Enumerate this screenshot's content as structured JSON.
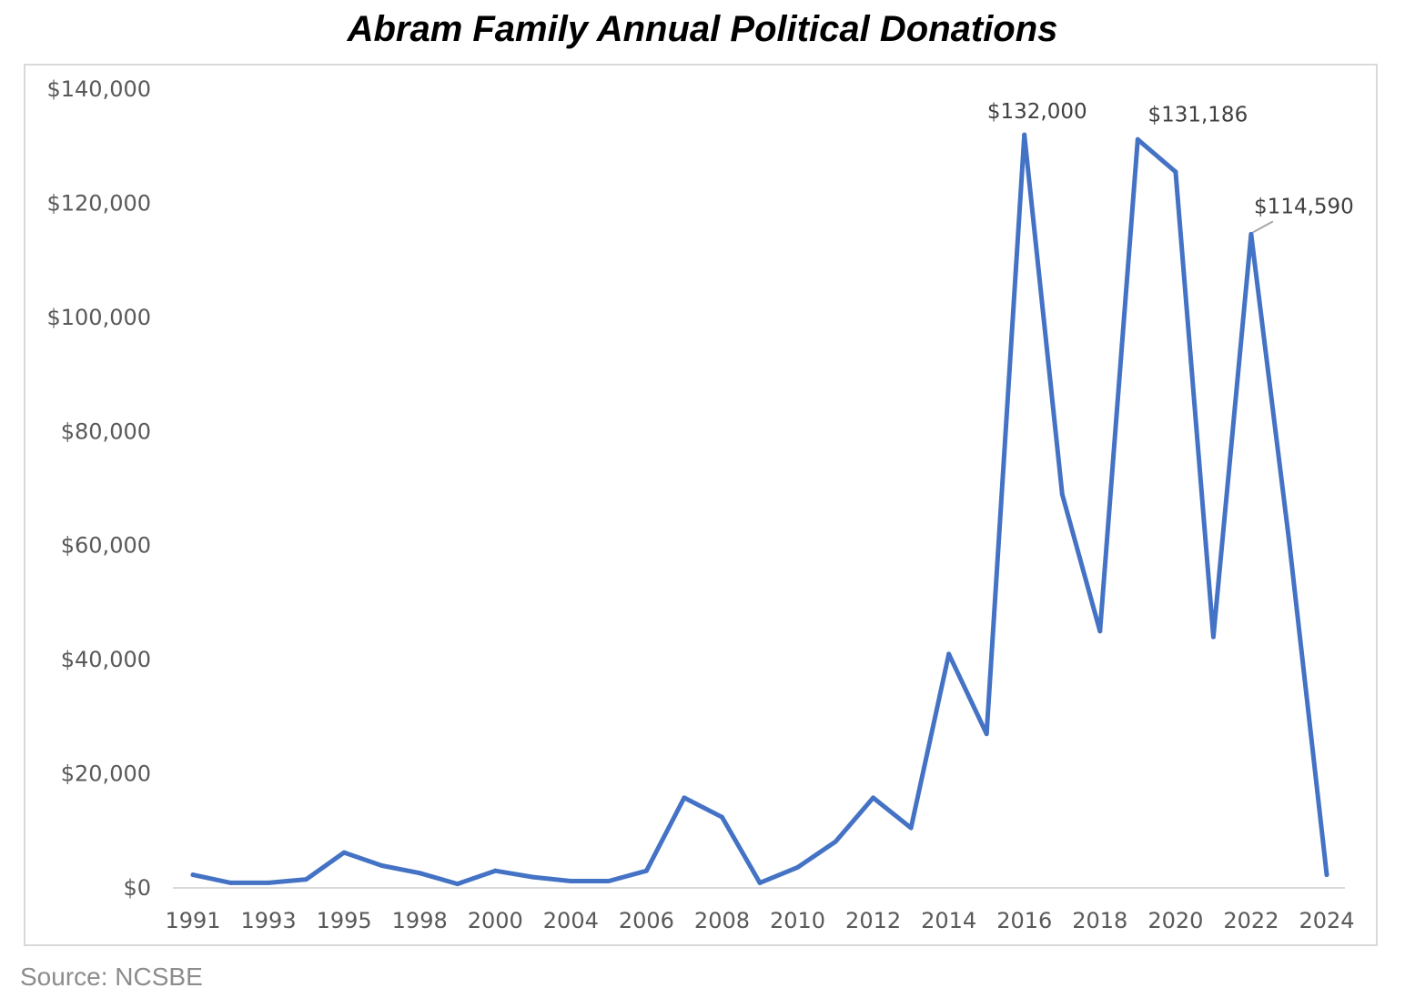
{
  "chart_data": {
    "type": "line",
    "title": "Abram Family Annual Political Donations",
    "source": "Source: NCSBE",
    "x": [
      1991,
      1992,
      1993,
      1994,
      1995,
      1996,
      1998,
      1999,
      2000,
      2003,
      2004,
      2005,
      2006,
      2007,
      2008,
      2009,
      2010,
      2011,
      2012,
      2013,
      2014,
      2015,
      2016,
      2017,
      2018,
      2019,
      2020,
      2021,
      2022,
      2023,
      2024
    ],
    "x_tick_labels": [
      "1991",
      "1993",
      "1995",
      "1998",
      "2000",
      "2004",
      "2006",
      "2008",
      "2010",
      "2012",
      "2014",
      "2016",
      "2018",
      "2020",
      "2022",
      "2024"
    ],
    "series": [
      {
        "values": [
          2300,
          900,
          900,
          1500,
          6200,
          3900,
          2600,
          700,
          3000,
          1900,
          1200,
          1200,
          3000,
          15800,
          12400,
          900,
          3600,
          8100,
          15800,
          10500,
          41000,
          27000,
          132000,
          69000,
          45000,
          131186,
          125500,
          44000,
          114590,
          61000,
          2300
        ],
        "color": "#4472c4"
      }
    ],
    "data_labels": [
      {
        "x": 2016,
        "value": 132000,
        "text": "$132,000"
      },
      {
        "x": 2019,
        "value": 131186,
        "text": "$131,186"
      },
      {
        "x": 2022,
        "value": 114590,
        "text": "$114,590"
      }
    ],
    "ylim": [
      0,
      140000
    ],
    "y_ticks": [
      0,
      20000,
      40000,
      60000,
      80000,
      100000,
      120000,
      140000
    ],
    "y_tick_labels": [
      "$0",
      "$20,000",
      "$40,000",
      "$60,000",
      "$80,000",
      "$100,000",
      "$120,000",
      "$140,000"
    ],
    "grid": false,
    "legend": "none"
  }
}
